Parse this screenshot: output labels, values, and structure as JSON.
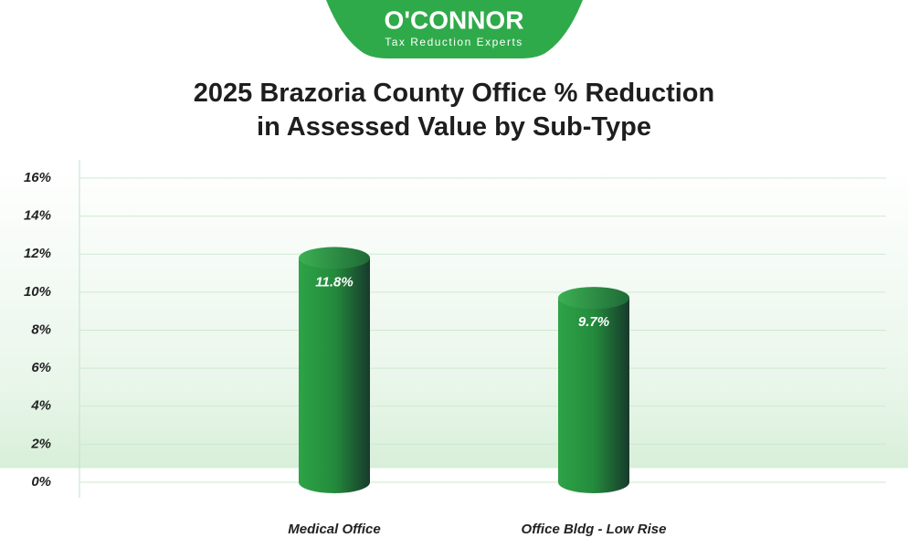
{
  "logo": {
    "name": "O'CONNOR",
    "tagline": "Tax Reduction Experts"
  },
  "chart_data": {
    "type": "bar",
    "title": "2025 Brazoria County Office % Reduction in Assessed Value by Sub-Type",
    "categories": [
      "Medical Office",
      "Office Bldg - Low Rise"
    ],
    "values": [
      11.8,
      9.7
    ],
    "value_labels": [
      "11.8%",
      "9.7%"
    ],
    "color": "#2a8f40",
    "ylim": [
      0,
      16
    ],
    "yticks": [
      {
        "value": 0,
        "label": "0%"
      },
      {
        "value": 2,
        "label": "2%"
      },
      {
        "value": 4,
        "label": "4%"
      },
      {
        "value": 6,
        "label": "6%"
      },
      {
        "value": 8,
        "label": "8%"
      },
      {
        "value": 10,
        "label": "10%"
      },
      {
        "value": 12,
        "label": "12%"
      },
      {
        "value": 14,
        "label": "14%"
      },
      {
        "value": 16,
        "label": "16%"
      }
    ],
    "grid": true
  }
}
